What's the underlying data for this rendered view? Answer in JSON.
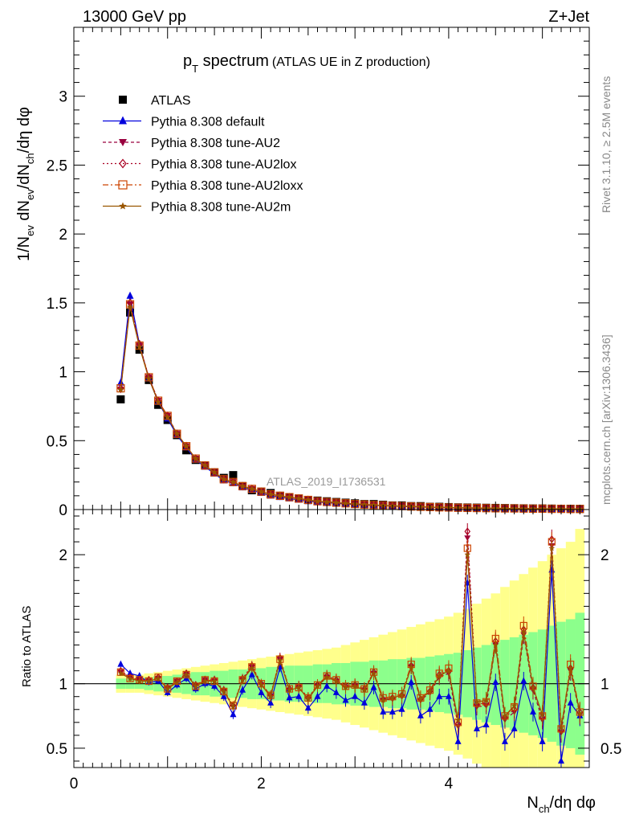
{
  "header": {
    "left": "13000 GeV pp",
    "right": "Z+Jet"
  },
  "title": {
    "main": "p",
    "main_sub": "T",
    "main_rest": " spectrum",
    "paren": "(ATLAS UE in Z production)"
  },
  "side_labels": {
    "rivet": "Rivet 3.1.10, ≥ 2.5M events",
    "mcplots": "mcplots.cern.ch [arXiv:1306.3436]"
  },
  "watermark": "ATLAS_2019_I1736531",
  "axes": {
    "y_label_main": "1/N",
    "y_label_ratio": "Ratio to ATLAS",
    "x_label": "N",
    "x_label_sub": "ch",
    "x_label_rest": "/dη dφ"
  },
  "legend": [
    {
      "name": "ATLAS",
      "color": "#000000",
      "marker": "square",
      "dash": ""
    },
    {
      "name": "Pythia 8.308 default",
      "color": "#0000dd",
      "marker": "triangle",
      "dash": ""
    },
    {
      "name": "Pythia 8.308 tune-AU2",
      "color": "#99003f",
      "marker": "triangle-down",
      "dash": "4,3"
    },
    {
      "name": "Pythia 8.308 tune-AU2lox",
      "color": "#aa0022",
      "marker": "diamond",
      "dash": "2,3"
    },
    {
      "name": "Pythia 8.308 tune-AU2loxx",
      "color": "#cc4400",
      "marker": "square-open",
      "dash": "7,3,2,3"
    },
    {
      "name": "Pythia 8.308 tune-AU2m",
      "color": "#995500",
      "marker": "star",
      "dash": ""
    }
  ],
  "chart_data": [
    {
      "type": "line",
      "panel": "main",
      "xlim": [
        0,
        5.5
      ],
      "ylim": [
        0,
        3.5
      ],
      "x_ticks": [],
      "y_ticks": [
        "0",
        "0.5",
        "1",
        "1.5",
        "2",
        "2.5",
        "3"
      ],
      "x": [
        0.5,
        0.6,
        0.7,
        0.8,
        0.9,
        1.0,
        1.1,
        1.2,
        1.3,
        1.4,
        1.5,
        1.6,
        1.7,
        1.8,
        1.9,
        2.0,
        2.1,
        2.2,
        2.3,
        2.4,
        2.5,
        2.6,
        2.7,
        2.8,
        2.9,
        3.0,
        3.1,
        3.2,
        3.3,
        3.4,
        3.5,
        3.6,
        3.7,
        3.8,
        3.9,
        4.0,
        4.1,
        4.2,
        4.3,
        4.4,
        4.5,
        4.6,
        4.7,
        4.8,
        4.9,
        5.0,
        5.1,
        5.2,
        5.3,
        5.4
      ],
      "series": [
        {
          "name": "ATLAS",
          "values": [
            0.8,
            1.43,
            1.16,
            0.94,
            0.76,
            0.65,
            0.54,
            0.43,
            0.36,
            0.32,
            0.27,
            0.23,
            0.25,
            0.17,
            0.14,
            0.13,
            0.12,
            0.1,
            0.09,
            0.08,
            0.07,
            0.065,
            0.06,
            0.055,
            0.05,
            0.045,
            0.04,
            0.04,
            0.035,
            0.03,
            0.03,
            0.025,
            0.025,
            0.02,
            0.02,
            0.018,
            0.016,
            0.015,
            0.014,
            0.013,
            0.012,
            0.011,
            0.01,
            0.009,
            0.008,
            0.008,
            0.007,
            0.006,
            0.006,
            0.005
          ]
        },
        {
          "name": "Pythia 8.308 default",
          "values": [
            0.92,
            1.55,
            1.2,
            0.95,
            0.78,
            0.66,
            0.54,
            0.45,
            0.36,
            0.31,
            0.26,
            0.21,
            0.19,
            0.16,
            0.14,
            0.12,
            0.1,
            0.09,
            0.08,
            0.07,
            0.06,
            0.055,
            0.05,
            0.045,
            0.04,
            0.036,
            0.032,
            0.03,
            0.028,
            0.025,
            0.022,
            0.02,
            0.018,
            0.016,
            0.015,
            0.013,
            0.012,
            0.011,
            0.01,
            0.009,
            0.008,
            0.007,
            0.007,
            0.006,
            0.005,
            0.005,
            0.004,
            0.004,
            0.003,
            0.003
          ]
        },
        {
          "name": "Pythia 8.308 tune-AU2",
          "values": [
            0.87,
            1.49,
            1.19,
            0.96,
            0.79,
            0.68,
            0.55,
            0.46,
            0.37,
            0.32,
            0.27,
            0.22,
            0.2,
            0.17,
            0.15,
            0.13,
            0.11,
            0.1,
            0.09,
            0.08,
            0.07,
            0.06,
            0.055,
            0.05,
            0.045,
            0.04,
            0.036,
            0.033,
            0.03,
            0.027,
            0.025,
            0.022,
            0.02,
            0.018,
            0.016,
            0.015,
            0.013,
            0.012,
            0.011,
            0.01,
            0.009,
            0.008,
            0.008,
            0.007,
            0.006,
            0.006,
            0.005,
            0.005,
            0.004,
            0.004
          ]
        },
        {
          "name": "Pythia 8.308 tune-AU2lox",
          "values": [
            0.88,
            1.5,
            1.2,
            0.96,
            0.79,
            0.68,
            0.55,
            0.46,
            0.37,
            0.32,
            0.27,
            0.22,
            0.2,
            0.17,
            0.15,
            0.13,
            0.11,
            0.1,
            0.09,
            0.08,
            0.07,
            0.06,
            0.055,
            0.05,
            0.045,
            0.04,
            0.036,
            0.033,
            0.03,
            0.027,
            0.025,
            0.022,
            0.02,
            0.018,
            0.016,
            0.015,
            0.013,
            0.012,
            0.011,
            0.01,
            0.009,
            0.008,
            0.008,
            0.007,
            0.006,
            0.006,
            0.005,
            0.005,
            0.004,
            0.004
          ]
        },
        {
          "name": "Pythia 8.308 tune-AU2loxx",
          "values": [
            0.88,
            1.49,
            1.19,
            0.96,
            0.79,
            0.68,
            0.55,
            0.46,
            0.37,
            0.32,
            0.27,
            0.22,
            0.2,
            0.17,
            0.15,
            0.13,
            0.11,
            0.1,
            0.09,
            0.08,
            0.07,
            0.06,
            0.055,
            0.05,
            0.045,
            0.04,
            0.036,
            0.033,
            0.03,
            0.027,
            0.025,
            0.022,
            0.02,
            0.018,
            0.016,
            0.015,
            0.013,
            0.012,
            0.011,
            0.01,
            0.009,
            0.008,
            0.008,
            0.007,
            0.006,
            0.006,
            0.005,
            0.005,
            0.004,
            0.004
          ]
        },
        {
          "name": "Pythia 8.308 tune-AU2m",
          "values": [
            0.87,
            1.47,
            1.18,
            0.95,
            0.78,
            0.67,
            0.55,
            0.46,
            0.37,
            0.32,
            0.27,
            0.22,
            0.2,
            0.17,
            0.15,
            0.13,
            0.11,
            0.1,
            0.09,
            0.08,
            0.07,
            0.06,
            0.055,
            0.05,
            0.045,
            0.04,
            0.036,
            0.033,
            0.03,
            0.027,
            0.025,
            0.022,
            0.02,
            0.018,
            0.016,
            0.015,
            0.013,
            0.012,
            0.011,
            0.01,
            0.009,
            0.008,
            0.008,
            0.007,
            0.006,
            0.006,
            0.005,
            0.005,
            0.004,
            0.004
          ]
        }
      ]
    },
    {
      "type": "line",
      "panel": "ratio",
      "xlim": [
        0,
        5.5
      ],
      "ylim": [
        0.35,
        2.35
      ],
      "x_ticks": [
        "0",
        "2",
        "4"
      ],
      "y_ticks": [
        "0.5",
        "1",
        "2"
      ],
      "x": [
        0.5,
        0.6,
        0.7,
        0.8,
        0.9,
        1.0,
        1.1,
        1.2,
        1.3,
        1.4,
        1.5,
        1.6,
        1.7,
        1.8,
        1.9,
        2.0,
        2.1,
        2.2,
        2.3,
        2.4,
        2.5,
        2.6,
        2.7,
        2.8,
        2.9,
        3.0,
        3.1,
        3.2,
        3.3,
        3.4,
        3.5,
        3.6,
        3.7,
        3.8,
        3.9,
        4.0,
        4.1,
        4.2,
        4.3,
        4.4,
        4.5,
        4.6,
        4.7,
        4.8,
        4.9,
        5.0,
        5.1,
        5.2,
        5.3,
        5.4
      ],
      "band_stat": [
        0.04,
        0.04,
        0.04,
        0.05,
        0.06,
        0.06,
        0.07,
        0.08,
        0.09,
        0.09,
        0.1,
        0.1,
        0.11,
        0.11,
        0.12,
        0.12,
        0.13,
        0.13,
        0.14,
        0.14,
        0.14,
        0.15,
        0.15,
        0.16,
        0.16,
        0.17,
        0.17,
        0.18,
        0.18,
        0.19,
        0.19,
        0.2,
        0.2,
        0.21,
        0.22,
        0.23,
        0.24,
        0.26,
        0.28,
        0.3,
        0.32,
        0.34,
        0.36,
        0.38,
        0.4,
        0.42,
        0.45,
        0.48,
        0.5,
        0.55
      ],
      "band_total": [
        0.07,
        0.07,
        0.07,
        0.08,
        0.09,
        0.1,
        0.11,
        0.12,
        0.13,
        0.14,
        0.15,
        0.16,
        0.17,
        0.18,
        0.19,
        0.2,
        0.21,
        0.22,
        0.23,
        0.24,
        0.25,
        0.26,
        0.27,
        0.28,
        0.3,
        0.32,
        0.34,
        0.36,
        0.38,
        0.4,
        0.42,
        0.44,
        0.46,
        0.48,
        0.5,
        0.52,
        0.55,
        0.58,
        0.62,
        0.66,
        0.7,
        0.75,
        0.8,
        0.85,
        0.9,
        0.95,
        1.0,
        1.05,
        1.1,
        1.2
      ],
      "series": [
        {
          "name": "Pythia 8.308 default",
          "values": [
            1.15,
            1.08,
            1.06,
            1.01,
            1.02,
            0.93,
            0.99,
            1.04,
            0.96,
            1.0,
            0.98,
            0.9,
            0.76,
            0.95,
            1.07,
            0.93,
            0.85,
            1.13,
            0.89,
            0.9,
            0.81,
            0.9,
            0.98,
            0.93,
            0.87,
            0.9,
            0.85,
            0.97,
            0.78,
            0.78,
            0.8,
            1.01,
            0.75,
            0.8,
            0.9,
            0.9,
            0.55,
            1.78,
            0.65,
            0.68,
            1.01,
            0.55,
            0.65,
            1.02,
            0.78,
            0.55,
            1.88,
            0.4,
            0.85,
            0.75
          ]
        },
        {
          "name": "Pythia 8.308 tune-AU2",
          "values": [
            1.09,
            1.05,
            1.03,
            1.02,
            1.04,
            0.96,
            1.02,
            1.08,
            0.98,
            1.03,
            1.02,
            0.94,
            0.82,
            1.03,
            1.13,
            0.99,
            0.9,
            1.19,
            0.95,
            0.97,
            0.88,
            0.98,
            1.05,
            1.02,
            0.97,
            0.98,
            0.95,
            1.08,
            0.87,
            0.88,
            0.9,
            1.13,
            0.87,
            0.93,
            1.05,
            1.08,
            0.67,
            2.13,
            0.82,
            0.83,
            1.3,
            0.72,
            0.78,
            1.38,
            0.95,
            0.72,
            2.07,
            0.62,
            1.1,
            0.76
          ]
        },
        {
          "name": "Pythia 8.308 tune-AU2lox",
          "values": [
            1.1,
            1.05,
            1.03,
            1.03,
            1.05,
            0.97,
            1.02,
            1.08,
            0.99,
            1.03,
            1.03,
            0.95,
            0.83,
            1.04,
            1.14,
            1.0,
            0.91,
            1.2,
            0.96,
            0.98,
            0.89,
            0.99,
            1.06,
            1.03,
            0.98,
            0.99,
            0.96,
            1.09,
            0.88,
            0.89,
            0.91,
            1.14,
            0.88,
            0.94,
            1.07,
            1.1,
            0.69,
            2.18,
            0.84,
            0.85,
            1.33,
            0.74,
            0.8,
            1.42,
            0.97,
            0.74,
            2.12,
            0.64,
            1.12,
            0.78
          ]
        },
        {
          "name": "Pythia 8.308 tune-AU2loxx",
          "values": [
            1.09,
            1.04,
            1.03,
            1.02,
            1.05,
            0.96,
            1.02,
            1.07,
            0.98,
            1.03,
            1.02,
            0.94,
            0.83,
            1.03,
            1.13,
            1.0,
            0.91,
            1.19,
            0.96,
            0.97,
            0.89,
            0.99,
            1.06,
            1.03,
            0.98,
            0.99,
            0.96,
            1.09,
            0.89,
            0.9,
            0.92,
            1.15,
            0.89,
            0.95,
            1.08,
            1.12,
            0.7,
            2.05,
            0.85,
            0.86,
            1.35,
            0.75,
            0.82,
            1.45,
            0.98,
            0.75,
            2.1,
            0.65,
            1.15,
            0.78
          ]
        },
        {
          "name": "Pythia 8.308 tune-AU2m",
          "values": [
            1.08,
            1.04,
            1.02,
            1.02,
            1.04,
            0.96,
            1.01,
            1.07,
            0.98,
            1.02,
            1.02,
            0.94,
            0.82,
            1.03,
            1.12,
            0.99,
            0.9,
            1.18,
            0.95,
            0.97,
            0.88,
            0.98,
            1.05,
            1.02,
            0.97,
            0.98,
            0.95,
            1.08,
            0.87,
            0.89,
            0.91,
            1.13,
            0.88,
            0.94,
            1.06,
            1.1,
            0.72,
            2.0,
            0.86,
            0.87,
            1.3,
            0.75,
            0.83,
            1.4,
            0.97,
            0.76,
            2.05,
            0.66,
            1.12,
            0.77
          ]
        }
      ]
    }
  ]
}
